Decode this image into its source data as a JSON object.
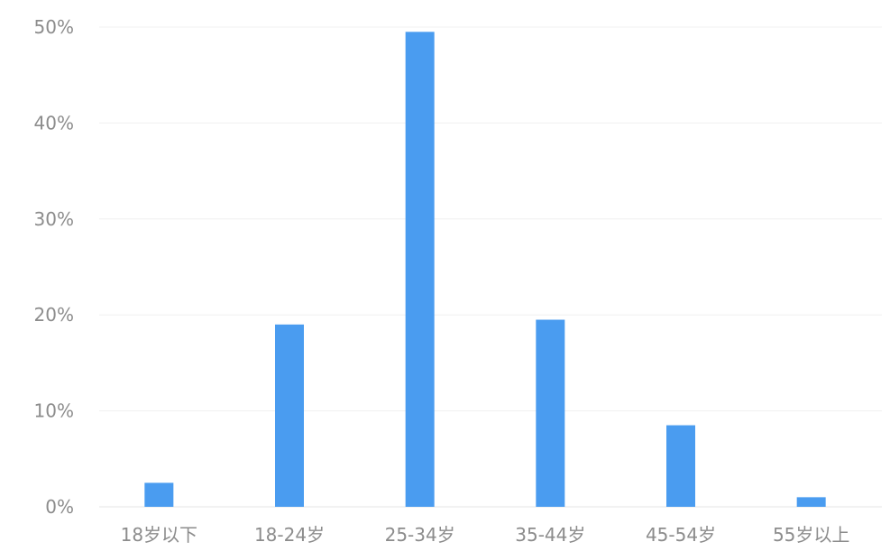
{
  "chart_data": {
    "type": "bar",
    "title": "",
    "xlabel": "",
    "ylabel": "",
    "categories": [
      "18岁以下",
      "18-24岁",
      "25-34岁",
      "35-44岁",
      "45-54岁",
      "55岁以上"
    ],
    "values": [
      2.5,
      19,
      49.5,
      19.5,
      8.5,
      1
    ],
    "ylim": [
      0,
      50
    ],
    "yticks": [
      0,
      10,
      20,
      30,
      40,
      50
    ],
    "ytick_labels": [
      "0%",
      "10%",
      "20%",
      "30%",
      "40%",
      "50%"
    ],
    "grid": true,
    "bar_color": "#4a9cf0"
  }
}
